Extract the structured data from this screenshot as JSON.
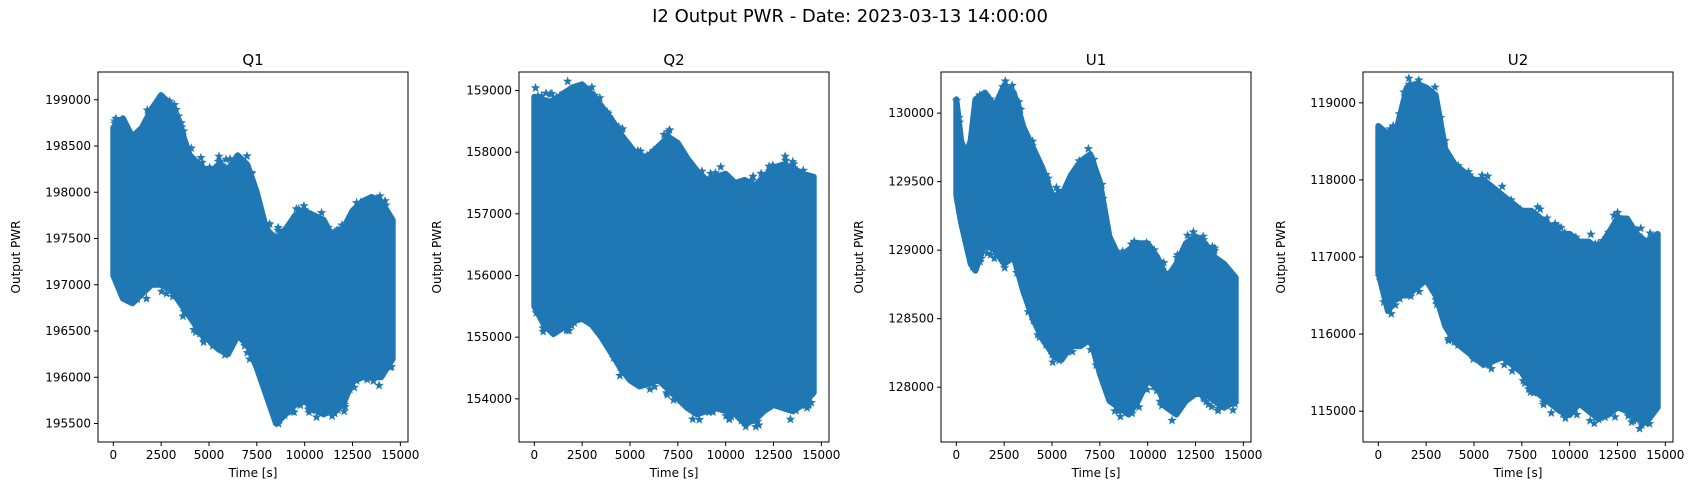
{
  "figure": {
    "suptitle": "I2 Output PWR - Date: 2023-03-13 14:00:00"
  },
  "chart_data": [
    {
      "type": "scatter",
      "title": "Q1",
      "xlabel": "Time [s]",
      "ylabel": "Output PWR",
      "xlim": [
        -800,
        15400
      ],
      "ylim": [
        195300,
        199300
      ],
      "xticks": [
        0,
        2500,
        5000,
        7500,
        10000,
        12500,
        15000
      ],
      "yticks": [
        195500,
        196000,
        196500,
        197000,
        197500,
        198000,
        198500,
        199000
      ],
      "marker": "*",
      "color": "#1f77b4",
      "envelope": {
        "x": [
          0,
          500,
          1000,
          1500,
          2000,
          2500,
          3000,
          3500,
          4000,
          4500,
          5000,
          5500,
          6000,
          6500,
          7000,
          7500,
          8000,
          8500,
          9000,
          9500,
          10000,
          10500,
          11000,
          11500,
          12000,
          12500,
          13000,
          13500,
          14000,
          14600
        ],
        "upper": [
          198700,
          198800,
          198600,
          198700,
          198900,
          199050,
          198950,
          198700,
          198400,
          198300,
          198200,
          198300,
          198250,
          198400,
          198300,
          198000,
          197600,
          197500,
          197600,
          197750,
          197800,
          197750,
          197700,
          197500,
          197600,
          197800,
          197900,
          197950,
          197900,
          197700
        ],
        "lower": [
          197100,
          196850,
          196800,
          196900,
          197000,
          197000,
          196950,
          196800,
          196650,
          196500,
          196400,
          196300,
          196250,
          196450,
          196350,
          196100,
          195800,
          195500,
          195600,
          195700,
          195750,
          195650,
          195600,
          195650,
          195700,
          195950,
          196000,
          196000,
          196000,
          196200
        ]
      }
    },
    {
      "type": "scatter",
      "title": "Q2",
      "xlabel": "Time [s]",
      "ylabel": "Output PWR",
      "xlim": [
        -800,
        15400
      ],
      "ylim": [
        153300,
        159300
      ],
      "xticks": [
        0,
        2500,
        5000,
        7500,
        10000,
        12500,
        15000
      ],
      "yticks": [
        154000,
        155000,
        156000,
        157000,
        158000,
        159000
      ],
      "marker": "*",
      "color": "#1f77b4",
      "envelope": {
        "x": [
          0,
          500,
          1000,
          1500,
          2000,
          2500,
          3000,
          3500,
          4000,
          4500,
          5000,
          5500,
          6000,
          6500,
          7000,
          7500,
          8000,
          8500,
          9000,
          9500,
          10000,
          10500,
          11000,
          11500,
          12000,
          12500,
          13000,
          13500,
          14000,
          14600
        ],
        "upper": [
          158900,
          158850,
          158800,
          158950,
          159050,
          159100,
          158950,
          158750,
          158550,
          158300,
          158100,
          157900,
          157950,
          158100,
          158250,
          158150,
          157900,
          157700,
          157550,
          157600,
          157650,
          157500,
          157550,
          157450,
          157600,
          157750,
          157800,
          157750,
          157650,
          157600
        ],
        "lower": [
          155500,
          155200,
          155050,
          155150,
          155250,
          155300,
          155200,
          155000,
          154750,
          154500,
          154300,
          154200,
          154250,
          154300,
          154150,
          154000,
          153850,
          153750,
          153800,
          153850,
          153800,
          153750,
          153600,
          153650,
          153800,
          153900,
          153850,
          153800,
          153900,
          154100
        ]
      }
    },
    {
      "type": "scatter",
      "title": "U1",
      "xlabel": "Time [s]",
      "ylabel": "Output PWR",
      "xlim": [
        -800,
        15400
      ],
      "ylim": [
        127600,
        130300
      ],
      "xticks": [
        0,
        2500,
        5000,
        7500,
        10000,
        12500,
        15000
      ],
      "yticks": [
        128000,
        128500,
        129000,
        129500,
        130000
      ],
      "marker": "*",
      "color": "#1f77b4",
      "envelope": {
        "x": [
          0,
          250,
          500,
          750,
          1000,
          1500,
          2000,
          2500,
          3000,
          3500,
          4000,
          4500,
          5000,
          5500,
          6000,
          6500,
          7000,
          7500,
          8000,
          8500,
          9000,
          9500,
          10000,
          10500,
          11000,
          11500,
          12000,
          12500,
          13000,
          13500,
          14000,
          14600
        ],
        "upper": [
          130100,
          129800,
          129700,
          129800,
          130100,
          130150,
          130050,
          130200,
          130150,
          129900,
          129750,
          129600,
          129400,
          129400,
          129550,
          129650,
          129700,
          129500,
          129100,
          128950,
          129000,
          129050,
          129050,
          128950,
          128800,
          128900,
          129050,
          129100,
          129050,
          128950,
          128900,
          128800
        ],
        "lower": [
          129400,
          129200,
          129050,
          128900,
          128850,
          129050,
          129000,
          128900,
          128950,
          128700,
          128500,
          128350,
          128250,
          128200,
          128300,
          128300,
          128350,
          128100,
          127900,
          127850,
          127800,
          127900,
          128050,
          128000,
          127850,
          127800,
          127900,
          127950,
          127950,
          127900,
          127850,
          127900
        ]
      }
    },
    {
      "type": "scatter",
      "title": "U2",
      "xlabel": "Time [s]",
      "ylabel": "Output PWR",
      "xlim": [
        -800,
        15400
      ],
      "ylim": [
        114600,
        119400
      ],
      "xticks": [
        0,
        2500,
        5000,
        7500,
        10000,
        12500,
        15000
      ],
      "yticks": [
        115000,
        116000,
        117000,
        118000,
        119000
      ],
      "marker": "*",
      "color": "#1f77b4",
      "envelope": {
        "x": [
          0,
          500,
          1000,
          1500,
          2000,
          2500,
          3000,
          3500,
          4000,
          4500,
          5000,
          5500,
          6000,
          6500,
          7000,
          7500,
          8000,
          8500,
          9000,
          9500,
          10000,
          10500,
          11000,
          11500,
          12000,
          12500,
          13000,
          13500,
          14000,
          14600
        ],
        "upper": [
          118700,
          118600,
          118700,
          119200,
          119250,
          119200,
          119100,
          118400,
          118200,
          118100,
          118000,
          118000,
          117900,
          117800,
          117700,
          117600,
          117600,
          117500,
          117400,
          117300,
          117300,
          117200,
          117200,
          117100,
          117300,
          117500,
          117500,
          117300,
          117200,
          117300
        ],
        "lower": [
          116800,
          116300,
          116500,
          116500,
          116600,
          116700,
          116500,
          116100,
          115900,
          115800,
          115700,
          115600,
          115650,
          115700,
          115600,
          115500,
          115300,
          115200,
          115100,
          115000,
          114950,
          115100,
          115000,
          114900,
          114950,
          115050,
          115000,
          114900,
          114850,
          115050
        ]
      }
    }
  ]
}
